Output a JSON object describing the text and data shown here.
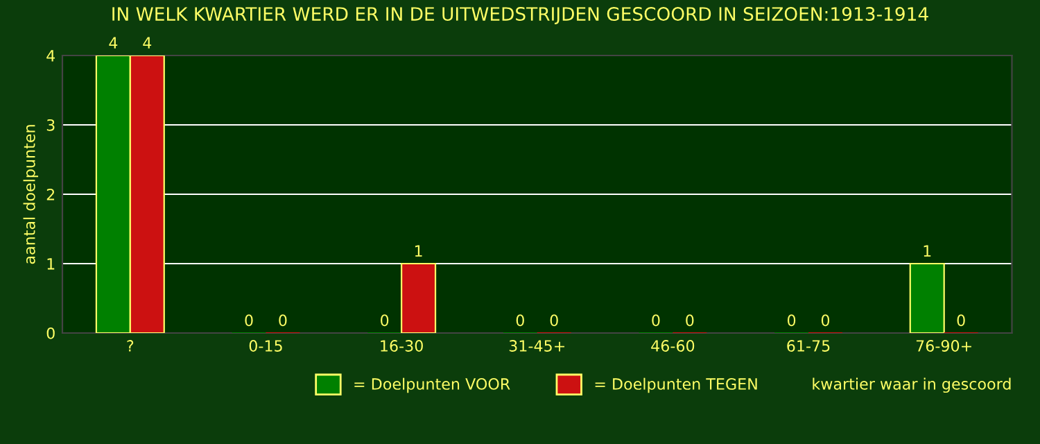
{
  "chart_data": {
    "type": "bar",
    "title": "IN WELK KWARTIER WERD ER IN DE UITWEDSTRIJDEN GESCOORD IN SEIZOEN:1913-1914",
    "xlabel": "kwartier waar in gescoord",
    "ylabel": "aantal doelpunten",
    "categories": [
      "?",
      "0-15",
      "16-30",
      "31-45+",
      "46-60",
      "61-75",
      "76-90+"
    ],
    "series": [
      {
        "name": "= Doelpunten VOOR",
        "color": "#008000",
        "values": [
          4,
          0,
          0,
          0,
          0,
          0,
          1
        ]
      },
      {
        "name": "= Doelpunten TEGEN",
        "color": "#cc1111",
        "values": [
          4,
          0,
          1,
          0,
          0,
          0,
          0
        ]
      }
    ],
    "ylim": [
      0,
      4
    ],
    "yticks": [
      0,
      1,
      2,
      3,
      4
    ],
    "grid": "y",
    "legend": "bottom",
    "data_labels": true
  }
}
